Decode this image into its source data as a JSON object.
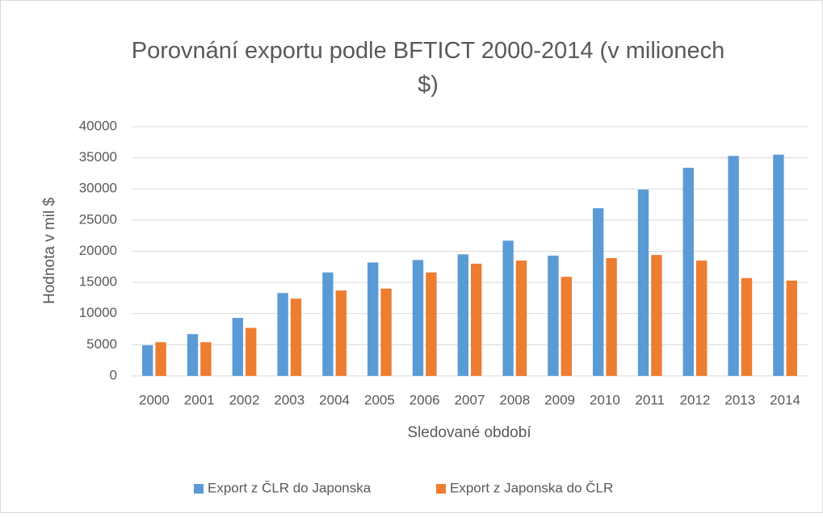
{
  "chart_data": {
    "type": "bar",
    "title": "Porovnání exportu podle BFTICT 2000-2014 (v milionech $)",
    "x_label": "Sledované období",
    "y_label": "Hodnota v mil $",
    "categories": [
      "2000",
      "2001",
      "2002",
      "2003",
      "2004",
      "2005",
      "2006",
      "2007",
      "2008",
      "2009",
      "2010",
      "2011",
      "2012",
      "2013",
      "2014"
    ],
    "series": [
      {
        "name": "Export z ČLR do Japonska",
        "color": "#5b9bd5",
        "values": [
          4900,
          6700,
          9300,
          13300,
          16600,
          18200,
          18600,
          19500,
          21700,
          19300,
          26900,
          29900,
          33400,
          35300,
          35500
        ]
      },
      {
        "name": "Export z Japonska do ČLR",
        "color": "#ed7d31",
        "values": [
          5400,
          5400,
          7700,
          12400,
          13700,
          14000,
          16600,
          18000,
          18500,
          15900,
          18900,
          19400,
          18500,
          15700,
          15300
        ]
      }
    ],
    "ylim": [
      0,
      40000
    ],
    "yticks": [
      0,
      5000,
      10000,
      15000,
      20000,
      25000,
      30000,
      35000,
      40000
    ],
    "grid": true,
    "legend": "bottom"
  }
}
